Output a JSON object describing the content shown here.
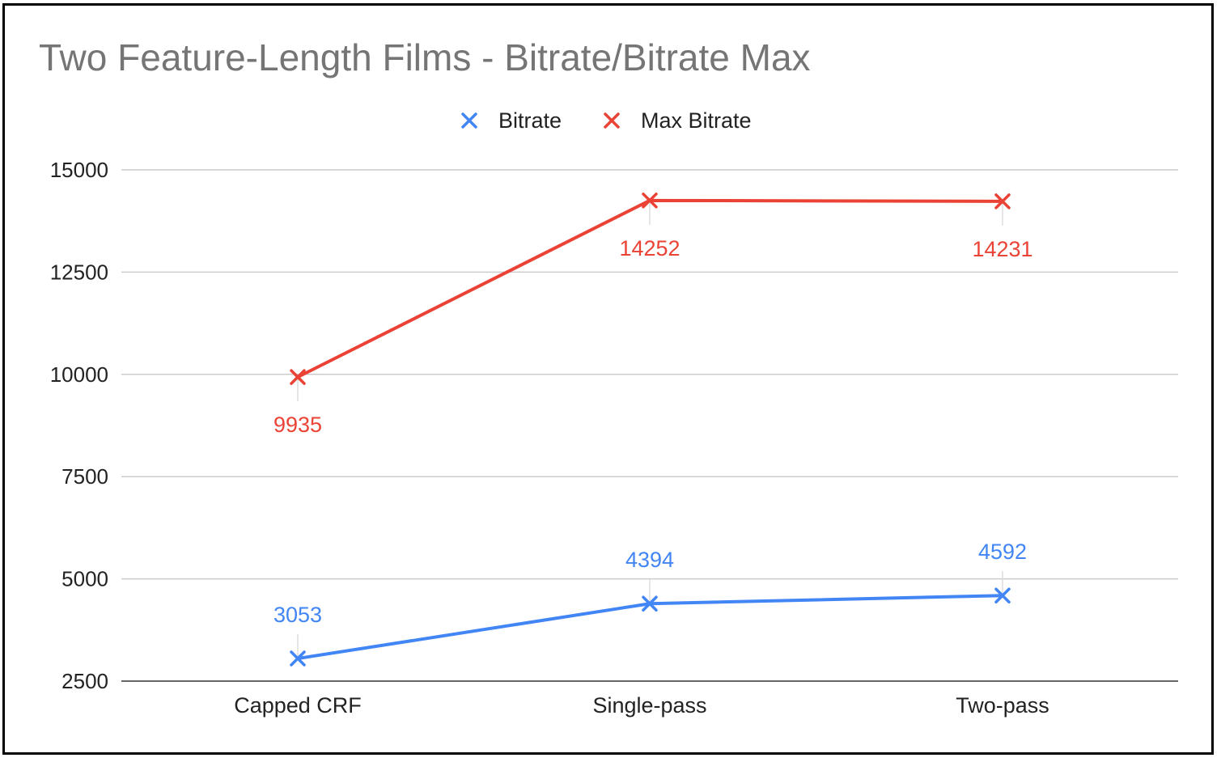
{
  "chart_data": {
    "type": "line",
    "title": "Two Feature-Length Films - Bitrate/Bitrate Max",
    "xlabel": "",
    "ylabel": "",
    "categories": [
      "Capped CRF",
      "Single-pass",
      "Two-pass"
    ],
    "series": [
      {
        "name": "Bitrate",
        "color": "#4285f4",
        "marker": "x",
        "values": [
          3053,
          4394,
          4592
        ],
        "labels": [
          "3053",
          "4394",
          "4592"
        ],
        "label_position": "above"
      },
      {
        "name": "Max Bitrate",
        "color": "#ea4335",
        "marker": "x",
        "values": [
          9935,
          14252,
          14231
        ],
        "labels": [
          "9935",
          "14252",
          "14231"
        ],
        "label_position": "below"
      }
    ],
    "ylim": [
      2500,
      15000
    ],
    "yticks": [
      2500,
      5000,
      7500,
      10000,
      12500,
      15000
    ],
    "ytick_labels": [
      "2500",
      "5000",
      "7500",
      "10000",
      "12500",
      "15000"
    ],
    "grid": true,
    "legend_position": "top-center"
  }
}
